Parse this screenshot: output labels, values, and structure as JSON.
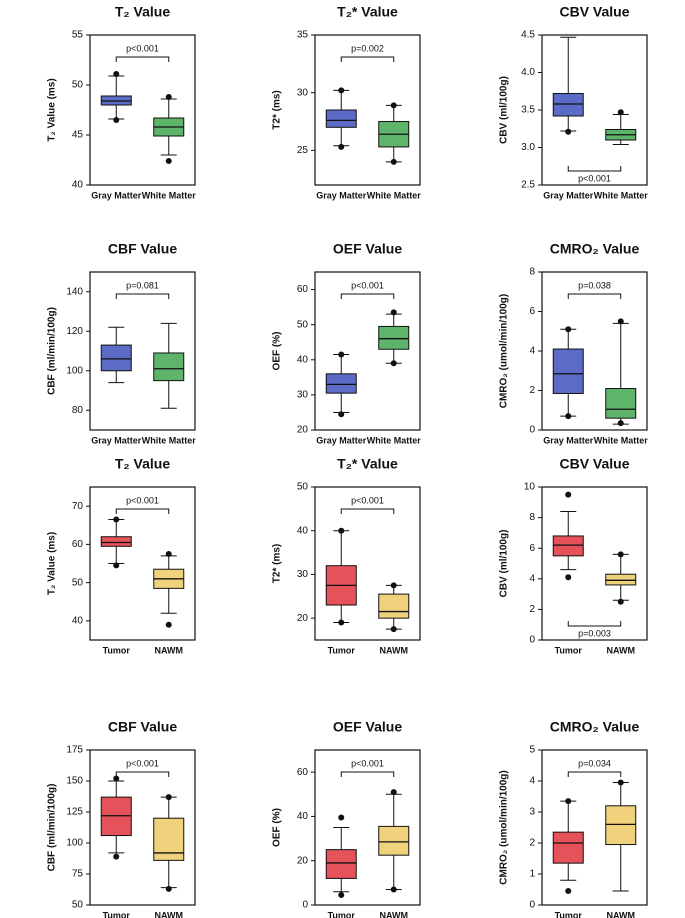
{
  "chart_data": [
    {
      "type": "box",
      "title": "T₂ Value",
      "ylabel": "T₂ Value (ms)",
      "categories": [
        "Gray Matter",
        "White Matter"
      ],
      "colors": [
        "#5b6bc6",
        "#5fb46b"
      ],
      "boxes": [
        {
          "low": 46.6,
          "q1": 48.0,
          "median": 48.4,
          "q3": 48.9,
          "high": 50.9,
          "points": [
            51.1,
            46.5
          ]
        },
        {
          "low": 43.0,
          "q1": 44.9,
          "median": 45.8,
          "q3": 46.7,
          "high": 48.6,
          "points": [
            48.8,
            42.4
          ]
        }
      ],
      "ylim": [
        40,
        55
      ],
      "yticks": [
        40,
        45,
        50,
        55
      ],
      "annotation": "p<0.001",
      "annotation_position": "above"
    },
    {
      "type": "box",
      "title": "T₂* Value",
      "ylabel": "T2*  (ms)",
      "categories": [
        "Gray Matter",
        "White Matter"
      ],
      "colors": [
        "#5b6bc6",
        "#5fb46b"
      ],
      "boxes": [
        {
          "low": 25.4,
          "q1": 27.0,
          "median": 27.6,
          "q3": 28.5,
          "high": 30.2,
          "points": [
            30.2,
            25.3
          ]
        },
        {
          "low": 24.0,
          "q1": 25.3,
          "median": 26.4,
          "q3": 27.5,
          "high": 28.9,
          "points": [
            28.9,
            24.0
          ]
        }
      ],
      "ylim": [
        22,
        35
      ],
      "yticks": [
        25,
        30,
        35
      ],
      "annotation": "p=0.002",
      "annotation_position": "above"
    },
    {
      "type": "box",
      "title": "CBV Value",
      "ylabel": "CBV (ml/100g)",
      "categories": [
        "Gray Matter",
        "White Matter"
      ],
      "colors": [
        "#5b6bc6",
        "#5fb46b"
      ],
      "boxes": [
        {
          "low": 3.22,
          "q1": 3.42,
          "median": 3.58,
          "q3": 3.72,
          "high": 4.47,
          "points": [
            3.21
          ]
        },
        {
          "low": 3.04,
          "q1": 3.1,
          "median": 3.17,
          "q3": 3.24,
          "high": 3.44,
          "points": [
            3.47
          ]
        }
      ],
      "ylim": [
        2.5,
        4.5
      ],
      "yticks": [
        2.5,
        {
          "value": 3,
          "label": "3.0"
        },
        3.5,
        {
          "value": 4,
          "label": "4.0"
        },
        4.5
      ],
      "annotation": "p<0.001",
      "annotation_position": "below"
    },
    {
      "type": "box",
      "title": "CBF Value",
      "ylabel": "CBF (ml/min/100g)",
      "categories": [
        "Gray Matter",
        "White Matter"
      ],
      "colors": [
        "#5b6bc6",
        "#5fb46b"
      ],
      "boxes": [
        {
          "low": 94,
          "q1": 100,
          "median": 106,
          "q3": 113,
          "high": 122,
          "points": []
        },
        {
          "low": 81,
          "q1": 95,
          "median": 101,
          "q3": 109,
          "high": 124,
          "points": []
        }
      ],
      "ylim": [
        70,
        150
      ],
      "yticks": [
        80,
        100,
        120,
        140
      ],
      "annotation": "p=0.081",
      "annotation_position": "above"
    },
    {
      "type": "box",
      "title": "OEF Value",
      "ylabel": "OEF (%)",
      "categories": [
        "Gray Matter",
        "White Matter"
      ],
      "colors": [
        "#5b6bc6",
        "#5fb46b"
      ],
      "boxes": [
        {
          "low": 25,
          "q1": 30.5,
          "median": 33,
          "q3": 36,
          "high": 41.5,
          "points": [
            24.5,
            41.5
          ]
        },
        {
          "low": 39,
          "q1": 43,
          "median": 46,
          "q3": 49.5,
          "high": 53,
          "points": [
            39,
            53.5
          ]
        }
      ],
      "ylim": [
        20,
        65
      ],
      "yticks": [
        20,
        30,
        40,
        50,
        60
      ],
      "annotation": "p<0.001",
      "annotation_position": "above"
    },
    {
      "type": "box",
      "title": "CMRO₂ Value",
      "ylabel": "CMRO₂ (umol/min/100g)",
      "categories": [
        "Gray Matter",
        "White Matter"
      ],
      "colors": [
        "#5b6bc6",
        "#5fb46b"
      ],
      "boxes": [
        {
          "low": 0.7,
          "q1": 1.85,
          "median": 2.85,
          "q3": 4.1,
          "high": 5.1,
          "points": [
            0.7,
            5.1
          ]
        },
        {
          "low": 0.3,
          "q1": 0.6,
          "median": 1.05,
          "q3": 2.1,
          "high": 5.4,
          "points": [
            0.35,
            5.5
          ]
        }
      ],
      "ylim": [
        0,
        8
      ],
      "yticks": [
        0,
        2,
        4,
        6,
        8
      ],
      "annotation": "p=0.038",
      "annotation_position": "above"
    },
    {
      "type": "box",
      "title": "T₂ Value",
      "ylabel": "T₂ Value (ms)",
      "categories": [
        "Tumor",
        "NAWM"
      ],
      "colors": [
        "#e5525a",
        "#f1d27c"
      ],
      "boxes": [
        {
          "low": 55,
          "q1": 59.5,
          "median": 60.5,
          "q3": 62,
          "high": 66.5,
          "points": [
            54.5,
            66.5
          ]
        },
        {
          "low": 42,
          "q1": 48.5,
          "median": 51,
          "q3": 53.5,
          "high": 57,
          "points": [
            39,
            57.5
          ]
        }
      ],
      "ylim": [
        35,
        75
      ],
      "yticks": [
        40,
        50,
        60,
        70
      ],
      "annotation": "p<0.001",
      "annotation_position": "above"
    },
    {
      "type": "box",
      "title": "T₂* Value",
      "ylabel": "T2*  (ms)",
      "categories": [
        "Tumor",
        "NAWM"
      ],
      "colors": [
        "#e5525a",
        "#f1d27c"
      ],
      "boxes": [
        {
          "low": 19,
          "q1": 23,
          "median": 27.5,
          "q3": 32,
          "high": 40,
          "points": [
            19,
            40
          ]
        },
        {
          "low": 17.5,
          "q1": 20,
          "median": 21.5,
          "q3": 25.5,
          "high": 27.5,
          "points": [
            17.5,
            27.5
          ]
        }
      ],
      "ylim": [
        15,
        50
      ],
      "yticks": [
        20,
        30,
        40,
        50
      ],
      "annotation": "p<0.001",
      "annotation_position": "above"
    },
    {
      "type": "box",
      "title": "CBV Value",
      "ylabel": "CBV (ml/100g)",
      "categories": [
        "Tumor",
        "NAWM"
      ],
      "colors": [
        "#e5525a",
        "#f1d27c"
      ],
      "boxes": [
        {
          "low": 4.6,
          "q1": 5.5,
          "median": 6.2,
          "q3": 6.8,
          "high": 8.4,
          "points": [
            4.1,
            9.5
          ]
        },
        {
          "low": 2.6,
          "q1": 3.6,
          "median": 3.9,
          "q3": 4.3,
          "high": 5.6,
          "points": [
            2.5,
            5.6
          ]
        }
      ],
      "ylim": [
        0,
        10
      ],
      "yticks": [
        0,
        2,
        4,
        6,
        8,
        10
      ],
      "annotation": "p=0.003",
      "annotation_position": "below"
    },
    {
      "type": "box",
      "title": "CBF Value",
      "ylabel": "CBF (ml/min/100g)",
      "categories": [
        "Tumor",
        "NAWM"
      ],
      "colors": [
        "#e5525a",
        "#f1d27c"
      ],
      "boxes": [
        {
          "low": 92,
          "q1": 106,
          "median": 122,
          "q3": 137,
          "high": 150,
          "points": [
            89,
            152
          ]
        },
        {
          "low": 64,
          "q1": 86,
          "median": 92,
          "q3": 120,
          "high": 137,
          "points": [
            63,
            137
          ]
        }
      ],
      "ylim": [
        50,
        175
      ],
      "yticks": [
        50,
        75,
        100,
        125,
        150,
        175
      ],
      "annotation": "p<0.001",
      "annotation_position": "above"
    },
    {
      "type": "box",
      "title": "OEF Value",
      "ylabel": "OEF (%)",
      "categories": [
        "Tumor",
        "NAWM"
      ],
      "colors": [
        "#e5525a",
        "#f1d27c"
      ],
      "boxes": [
        {
          "low": 6,
          "q1": 12,
          "median": 19,
          "q3": 25,
          "high": 35,
          "points": [
            4.5,
            39.5
          ]
        },
        {
          "low": 7,
          "q1": 22.5,
          "median": 28.5,
          "q3": 35.5,
          "high": 50,
          "points": [
            7,
            51
          ]
        }
      ],
      "ylim": [
        0,
        70
      ],
      "yticks": [
        0,
        20,
        40,
        60
      ],
      "annotation": "p<0.001",
      "annotation_position": "above"
    },
    {
      "type": "box",
      "title": "CMRO₂ Value",
      "ylabel": "CMRO₂ (umol/min/100g)",
      "categories": [
        "Tumor",
        "NAWM"
      ],
      "colors": [
        "#e5525a",
        "#f1d27c"
      ],
      "boxes": [
        {
          "low": 0.8,
          "q1": 1.35,
          "median": 2.0,
          "q3": 2.35,
          "high": 3.35,
          "points": [
            0.45,
            3.35
          ]
        },
        {
          "low": 0.45,
          "q1": 1.95,
          "median": 2.6,
          "q3": 3.2,
          "high": 3.95,
          "points": [
            3.95
          ]
        }
      ],
      "ylim": [
        0,
        5
      ],
      "yticks": [
        0,
        1,
        2,
        3,
        4,
        5
      ],
      "annotation": "p=0.034",
      "annotation_position": "above"
    }
  ]
}
